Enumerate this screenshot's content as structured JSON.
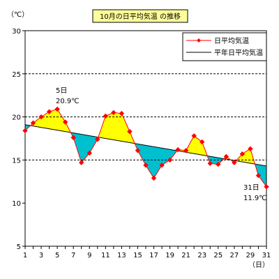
{
  "chart_data": {
    "type": "line",
    "title": "10月の日平均気温 の推移",
    "ylabel": "（℃）",
    "xlabel": "（日）",
    "ylim": [
      5,
      30
    ],
    "yticks": [
      5,
      10,
      15,
      20,
      25,
      30
    ],
    "xlim": [
      1,
      31
    ],
    "xticks": [
      1,
      3,
      5,
      7,
      9,
      11,
      13,
      15,
      17,
      19,
      21,
      23,
      25,
      27,
      29,
      31
    ],
    "grid": "horizontal dashed at 15, 20, 25",
    "legend_position": "top-right",
    "series": [
      {
        "name": "日平均気温",
        "color": "#ff0000",
        "x": [
          1,
          2,
          3,
          4,
          5,
          6,
          7,
          8,
          9,
          10,
          11,
          12,
          13,
          14,
          15,
          16,
          17,
          18,
          19,
          20,
          21,
          22,
          23,
          24,
          25,
          26,
          27,
          28,
          29,
          30,
          31
        ],
        "values": [
          18.4,
          19.3,
          20.0,
          20.6,
          20.9,
          19.4,
          17.6,
          14.7,
          15.8,
          17.4,
          20.1,
          20.5,
          20.4,
          18.3,
          16.1,
          14.4,
          12.9,
          14.4,
          15.0,
          16.2,
          16.1,
          17.8,
          17.1,
          14.6,
          14.5,
          15.4,
          14.7,
          15.7,
          16.3,
          13.2,
          11.9
        ]
      },
      {
        "name": "平年日平均気温",
        "color": "#000000",
        "x": [
          1,
          31
        ],
        "values": [
          19.1,
          14.3
        ]
      }
    ],
    "fill_above_color": "#ffff00",
    "fill_below_color": "#00c0d0",
    "annotations": [
      {
        "day": 5,
        "label": "5日",
        "value_label": "20.9℃"
      },
      {
        "day": 31,
        "label": "31日",
        "value_label": "11.9℃"
      }
    ]
  }
}
